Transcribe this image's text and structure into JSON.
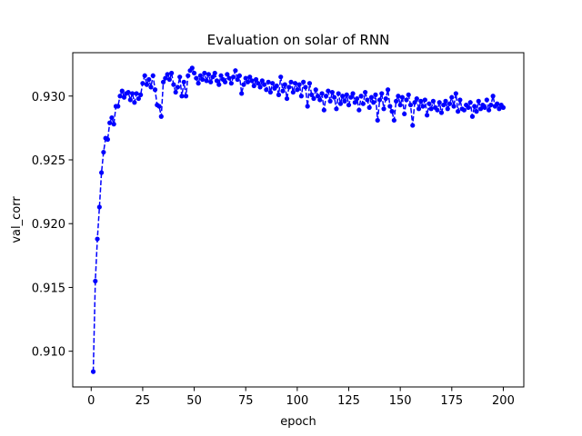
{
  "chart_data": {
    "type": "line",
    "title": "Evaluation on solar of RNN",
    "x_label": "epoch",
    "y_label": "val_corr",
    "x": [
      1,
      2,
      3,
      4,
      5,
      6,
      7,
      8,
      9,
      10,
      11,
      12,
      13,
      14,
      15,
      16,
      17,
      18,
      19,
      20,
      21,
      22,
      23,
      24,
      25,
      26,
      27,
      28,
      29,
      30,
      31,
      32,
      33,
      34,
      35,
      36,
      37,
      38,
      39,
      40,
      41,
      42,
      43,
      44,
      45,
      46,
      47,
      48,
      49,
      50,
      51,
      52,
      53,
      54,
      55,
      56,
      57,
      58,
      59,
      60,
      61,
      62,
      63,
      64,
      65,
      66,
      67,
      68,
      69,
      70,
      71,
      72,
      73,
      74,
      75,
      76,
      77,
      78,
      79,
      80,
      81,
      82,
      83,
      84,
      85,
      86,
      87,
      88,
      89,
      90,
      91,
      92,
      93,
      94,
      95,
      96,
      97,
      98,
      99,
      100,
      101,
      102,
      103,
      104,
      105,
      106,
      107,
      108,
      109,
      110,
      111,
      112,
      113,
      114,
      115,
      116,
      117,
      118,
      119,
      120,
      121,
      122,
      123,
      124,
      125,
      126,
      127,
      128,
      129,
      130,
      131,
      132,
      133,
      134,
      135,
      136,
      137,
      138,
      139,
      140,
      141,
      142,
      143,
      144,
      145,
      146,
      147,
      148,
      149,
      150,
      151,
      152,
      153,
      154,
      155,
      156,
      157,
      158,
      159,
      160,
      161,
      162,
      163,
      164,
      165,
      166,
      167,
      168,
      169,
      170,
      171,
      172,
      173,
      174,
      175,
      176,
      177,
      178,
      179,
      180,
      181,
      182,
      183,
      184,
      185,
      186,
      187,
      188,
      189,
      190,
      191,
      192,
      193,
      194,
      195,
      196,
      197,
      198,
      199,
      200
    ],
    "values": [
      0.9084,
      0.9155,
      0.9188,
      0.9213,
      0.924,
      0.9256,
      0.9267,
      0.9266,
      0.9279,
      0.9283,
      0.9278,
      0.9292,
      0.9292,
      0.93,
      0.9304,
      0.9299,
      0.9302,
      0.9303,
      0.9297,
      0.9302,
      0.9295,
      0.9302,
      0.9298,
      0.9301,
      0.931,
      0.9316,
      0.9309,
      0.9313,
      0.9307,
      0.9316,
      0.9305,
      0.9293,
      0.9292,
      0.9284,
      0.9311,
      0.9314,
      0.9317,
      0.9313,
      0.9318,
      0.9309,
      0.9303,
      0.9307,
      0.9315,
      0.93,
      0.9311,
      0.93,
      0.9316,
      0.932,
      0.9322,
      0.9318,
      0.9314,
      0.931,
      0.9316,
      0.9313,
      0.9318,
      0.9312,
      0.9317,
      0.9311,
      0.9315,
      0.9318,
      0.9312,
      0.9309,
      0.9316,
      0.9313,
      0.9311,
      0.9317,
      0.9314,
      0.931,
      0.9315,
      0.932,
      0.9313,
      0.9316,
      0.9302,
      0.9309,
      0.9314,
      0.9311,
      0.9315,
      0.9312,
      0.9308,
      0.9313,
      0.931,
      0.9307,
      0.9312,
      0.9309,
      0.9305,
      0.9311,
      0.9303,
      0.931,
      0.9306,
      0.9308,
      0.9301,
      0.9315,
      0.9304,
      0.9309,
      0.9298,
      0.9307,
      0.9311,
      0.9303,
      0.931,
      0.9305,
      0.9309,
      0.93,
      0.9311,
      0.9307,
      0.9292,
      0.931,
      0.9301,
      0.9298,
      0.9305,
      0.93,
      0.9297,
      0.9302,
      0.9289,
      0.93,
      0.9304,
      0.9296,
      0.9303,
      0.9299,
      0.929,
      0.9302,
      0.9294,
      0.93,
      0.9296,
      0.9301,
      0.9293,
      0.9299,
      0.9302,
      0.9295,
      0.9298,
      0.9289,
      0.93,
      0.9294,
      0.9303,
      0.9297,
      0.9291,
      0.9299,
      0.9295,
      0.9301,
      0.9281,
      0.9297,
      0.9302,
      0.929,
      0.9298,
      0.9305,
      0.9292,
      0.9288,
      0.9281,
      0.9296,
      0.93,
      0.9293,
      0.9299,
      0.9286,
      0.9297,
      0.9301,
      0.9293,
      0.9277,
      0.9295,
      0.9298,
      0.929,
      0.9296,
      0.9292,
      0.9297,
      0.9285,
      0.9294,
      0.929,
      0.9296,
      0.9291,
      0.9289,
      0.9295,
      0.9287,
      0.9293,
      0.9296,
      0.929,
      0.9294,
      0.9299,
      0.9292,
      0.9302,
      0.9288,
      0.9297,
      0.929,
      0.9289,
      0.9293,
      0.9291,
      0.9295,
      0.9284,
      0.9292,
      0.9288,
      0.9296,
      0.929,
      0.9293,
      0.9291,
      0.9297,
      0.9289,
      0.9293,
      0.93,
      0.9292,
      0.9294,
      0.929,
      0.9293,
      0.9291
    ],
    "color": "#0000ff",
    "xlim": [
      -8.95,
      209.95
    ],
    "ylim": [
      0.9072,
      0.9334
    ],
    "xticks": [
      0,
      25,
      50,
      75,
      100,
      125,
      150,
      175,
      200
    ],
    "yticks": [
      {
        "value": 0.91,
        "label": "0.910"
      },
      {
        "value": 0.915,
        "label": "0.915"
      },
      {
        "value": 0.92,
        "label": "0.920"
      },
      {
        "value": 0.925,
        "label": "0.925"
      },
      {
        "value": 0.93,
        "label": "0.930"
      }
    ]
  }
}
